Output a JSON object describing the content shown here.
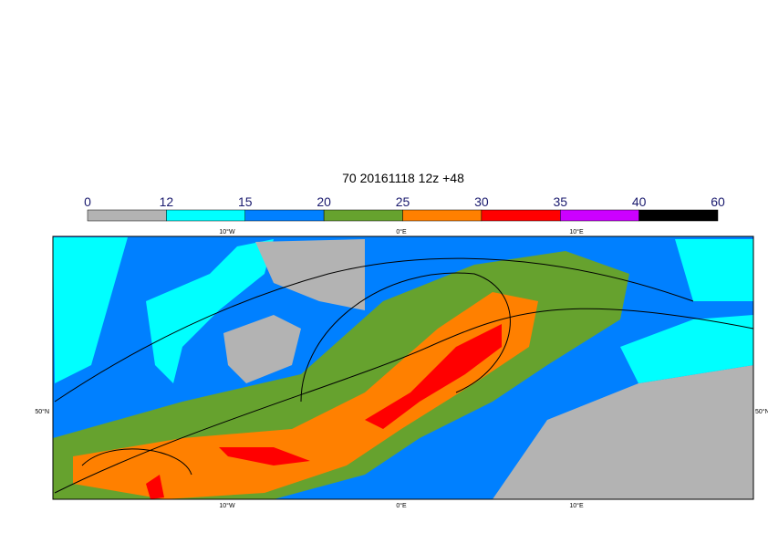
{
  "title": "70 20161118 12z +48",
  "colorbar": {
    "levels": [
      0,
      12,
      15,
      20,
      25,
      30,
      35,
      40,
      60
    ],
    "colors": [
      "#b3b3b3",
      "#00ffff",
      "#0080ff",
      "#66a22e",
      "#ff8000",
      "#ff0000",
      "#cc00ff",
      "#000000"
    ]
  },
  "map": {
    "lon_labels": [
      "10°W",
      "0°E",
      "10°E"
    ],
    "lat_labels": [
      "50°N"
    ]
  }
}
